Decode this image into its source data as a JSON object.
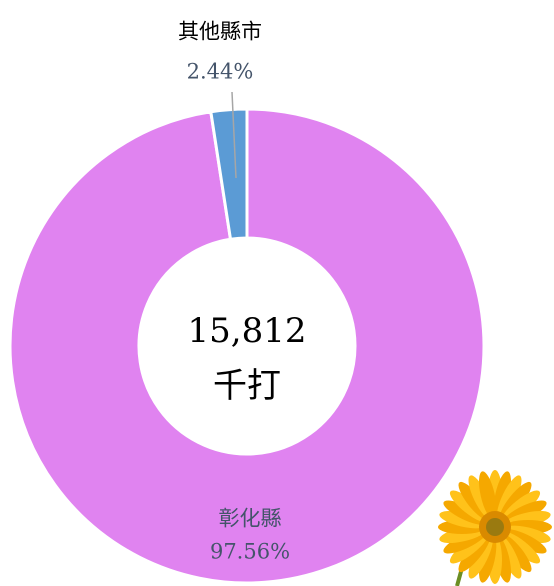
{
  "chart_data": {
    "type": "donut",
    "categories": [
      "彰化縣",
      "其他縣市"
    ],
    "values": [
      97.56,
      2.44
    ],
    "value_labels": [
      "97.56%",
      "2.44%"
    ],
    "colors": [
      "#e083f0",
      "#5b9bd5"
    ],
    "center_text": [
      "15,812",
      "千打"
    ]
  }
}
